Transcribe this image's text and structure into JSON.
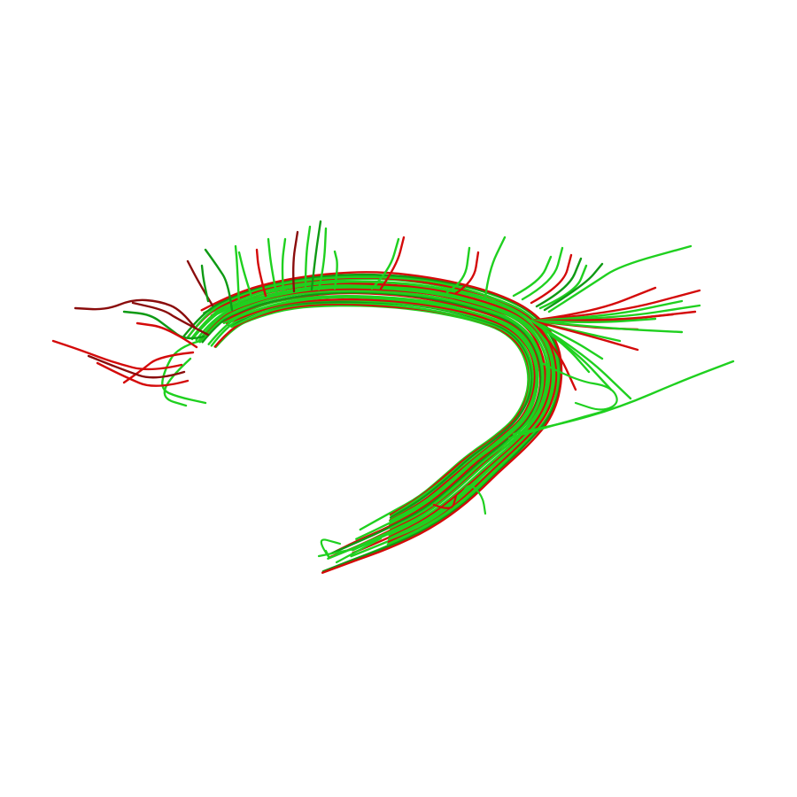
{
  "scene": {
    "background_color": "#ffffff",
    "subject": "fiber-tract-bundle",
    "colors": {
      "green": "#1fd01f",
      "green_dark": "#0e9a14",
      "red": "#d40a0a",
      "red_dark": "#8a0c0c"
    }
  }
}
